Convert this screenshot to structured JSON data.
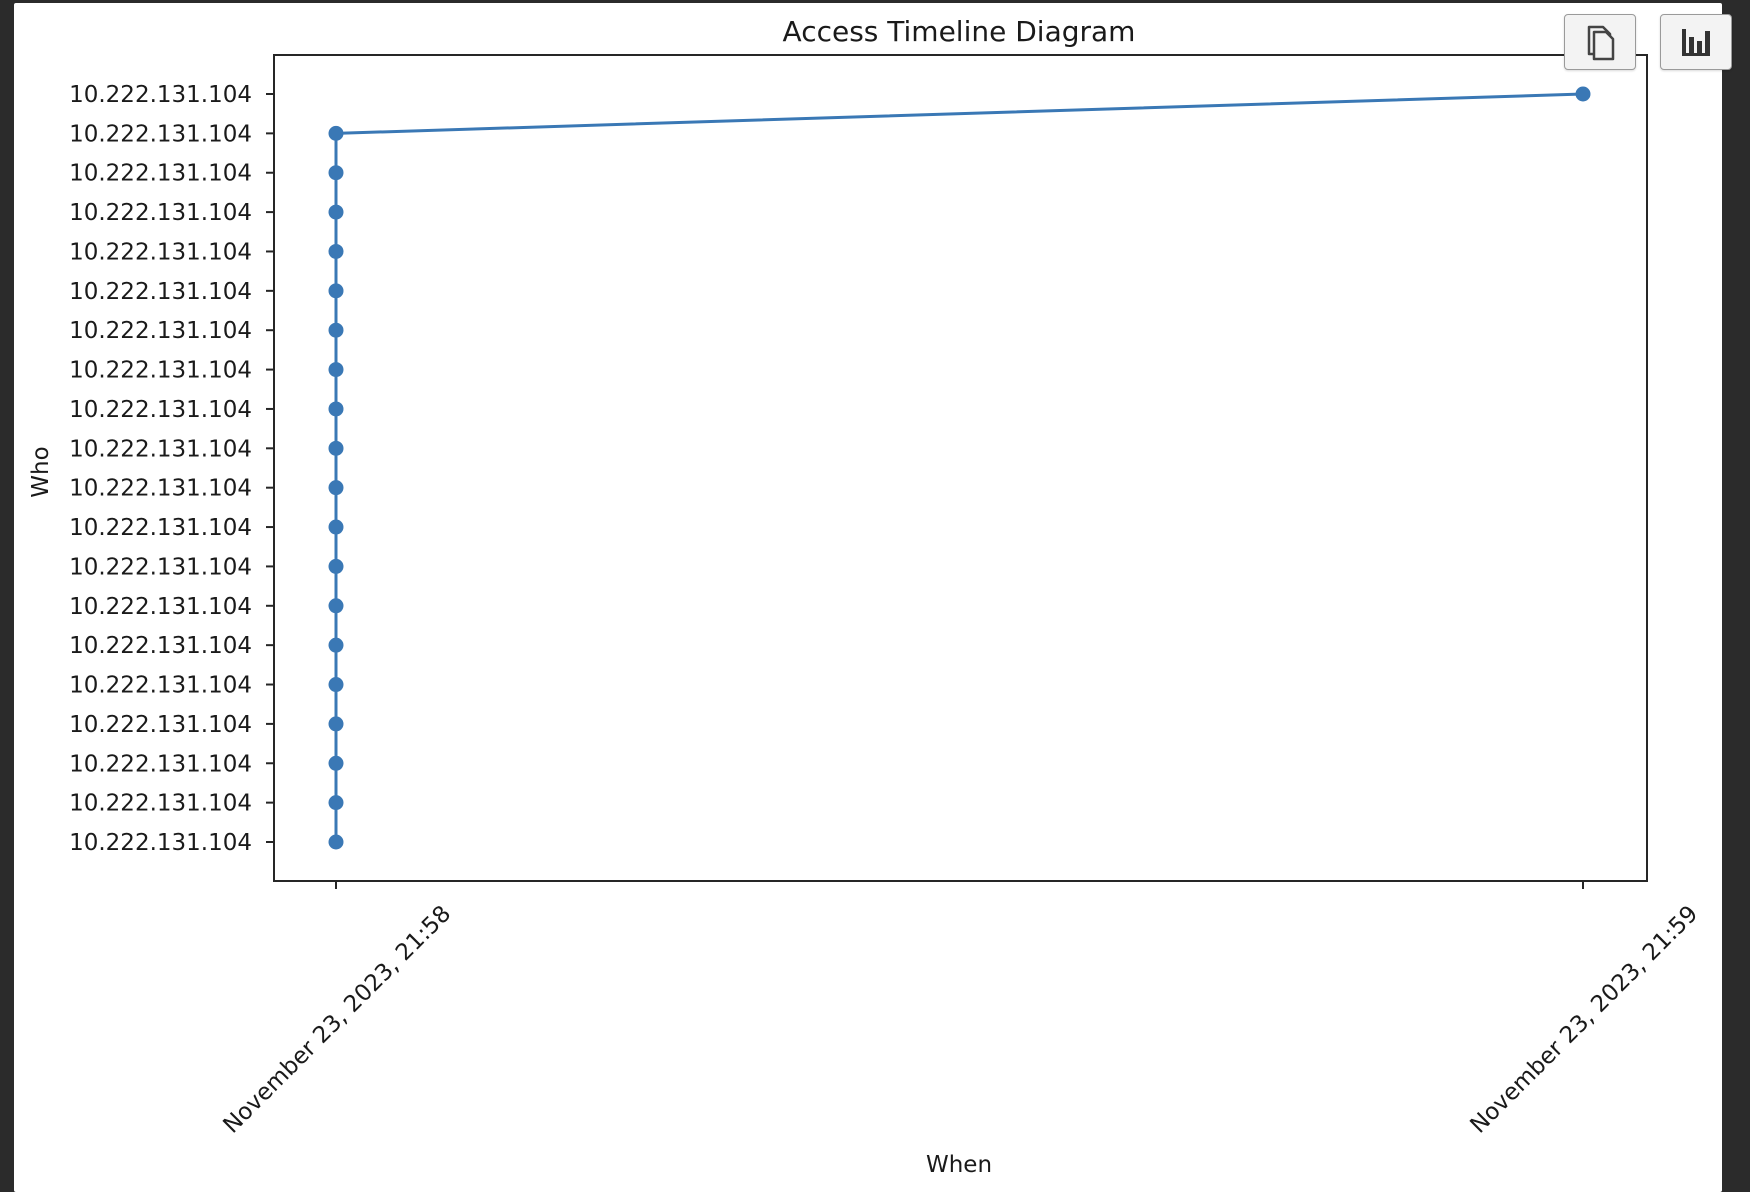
{
  "toolbar": {
    "copy_icon": "copy-icon",
    "chart_icon": "bar-chart-icon"
  },
  "chart_data": {
    "type": "line",
    "title": "Access Timeline Diagram",
    "xlabel": "When",
    "ylabel": "Who",
    "x_ticks": [
      "November 23, 2023, 21:58",
      "November 23, 2023, 21:59"
    ],
    "y_ticks": [
      "10.222.131.104",
      "10.222.131.104",
      "10.222.131.104",
      "10.222.131.104",
      "10.222.131.104",
      "10.222.131.104",
      "10.222.131.104",
      "10.222.131.104",
      "10.222.131.104",
      "10.222.131.104",
      "10.222.131.104",
      "10.222.131.104",
      "10.222.131.104",
      "10.222.131.104",
      "10.222.131.104",
      "10.222.131.104",
      "10.222.131.104",
      "10.222.131.104",
      "10.222.131.104",
      "10.222.131.104"
    ],
    "series": [
      {
        "x": [
          "November 23, 2023, 21:58",
          "November 23, 2023, 21:58",
          "November 23, 2023, 21:58",
          "November 23, 2023, 21:58",
          "November 23, 2023, 21:58",
          "November 23, 2023, 21:58",
          "November 23, 2023, 21:58",
          "November 23, 2023, 21:58",
          "November 23, 2023, 21:58",
          "November 23, 2023, 21:58",
          "November 23, 2023, 21:58",
          "November 23, 2023, 21:58",
          "November 23, 2023, 21:58",
          "November 23, 2023, 21:58",
          "November 23, 2023, 21:58",
          "November 23, 2023, 21:58",
          "November 23, 2023, 21:58",
          "November 23, 2023, 21:58",
          "November 23, 2023, 21:58",
          "November 23, 2023, 21:59"
        ],
        "y": [
          "10.222.131.104",
          "10.222.131.104",
          "10.222.131.104",
          "10.222.131.104",
          "10.222.131.104",
          "10.222.131.104",
          "10.222.131.104",
          "10.222.131.104",
          "10.222.131.104",
          "10.222.131.104",
          "10.222.131.104",
          "10.222.131.104",
          "10.222.131.104",
          "10.222.131.104",
          "10.222.131.104",
          "10.222.131.104",
          "10.222.131.104",
          "10.222.131.104",
          "10.222.131.104",
          "10.222.131.104"
        ],
        "color": "#3a78b5"
      }
    ],
    "grid": false,
    "legend": "none",
    "markers": true
  }
}
